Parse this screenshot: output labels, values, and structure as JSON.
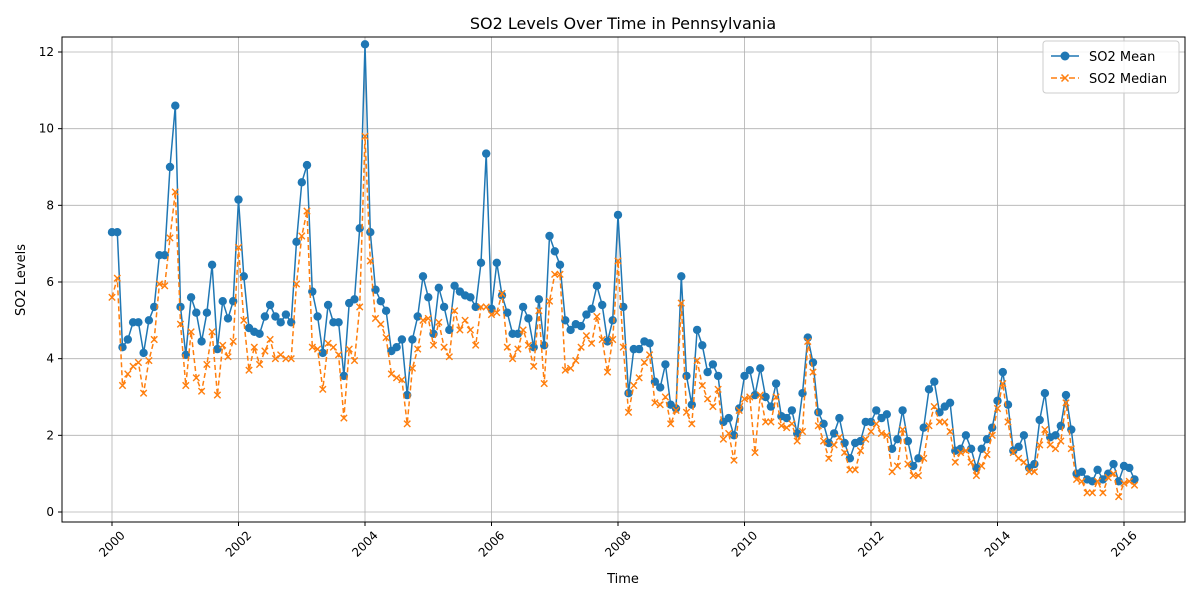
{
  "chart_data": {
    "type": "line",
    "title": "SO2 Levels Over Time in Pennsylvania",
    "xlabel": "Time",
    "ylabel": "SO2 Levels",
    "xlim": [
      2000,
      2016
    ],
    "ylim": [
      0,
      12.6
    ],
    "x_ticks": [
      "2000",
      "2002",
      "2004",
      "2006",
      "2008",
      "2010",
      "2012",
      "2014",
      "2016"
    ],
    "y_ticks": [
      "0",
      "2",
      "4",
      "6",
      "8",
      "10",
      "12"
    ],
    "grid": true,
    "legend_position": "top-right",
    "series": [
      {
        "name": "SO2 Mean",
        "color": "#1f77b4",
        "style": "solid",
        "marker": "circle",
        "values": [
          7.3,
          7.3,
          4.3,
          4.5,
          4.95,
          4.95,
          4.15,
          5.0,
          5.35,
          6.7,
          6.7,
          9.0,
          10.6,
          5.35,
          4.1,
          5.6,
          5.2,
          4.45,
          5.2,
          6.45,
          4.25,
          5.5,
          5.05,
          5.5,
          8.15,
          6.15,
          4.8,
          4.7,
          4.65,
          5.1,
          5.4,
          5.1,
          4.95,
          5.15,
          4.95,
          7.05,
          8.6,
          9.05,
          5.75,
          5.1,
          4.15,
          5.4,
          4.95,
          4.95,
          3.55,
          5.45,
          5.55,
          7.4,
          12.2,
          7.3,
          5.8,
          5.5,
          5.25,
          4.2,
          4.3,
          4.5,
          3.05,
          4.5,
          5.1,
          6.15,
          5.6,
          4.65,
          5.85,
          5.35,
          4.75,
          5.9,
          5.75,
          5.65,
          5.6,
          5.35,
          6.5,
          9.35,
          5.3,
          6.5,
          5.65,
          5.2,
          4.65,
          4.65,
          5.35,
          5.05,
          4.3,
          5.55,
          4.35,
          7.2,
          6.8,
          6.45,
          5.0,
          4.75,
          4.9,
          4.85,
          5.15,
          5.3,
          5.9,
          5.4,
          4.45,
          5.0,
          7.75,
          5.35,
          3.1,
          4.25,
          4.25,
          4.45,
          4.4,
          3.4,
          3.25,
          3.85,
          2.8,
          2.7,
          6.15,
          3.55,
          2.8,
          4.75,
          4.35,
          3.65,
          3.85,
          3.55,
          2.35,
          2.45,
          2.0,
          2.7,
          3.55,
          3.7,
          3.05,
          3.75,
          3.0,
          2.75,
          3.35,
          2.5,
          2.45,
          2.65,
          2.05,
          3.1,
          4.55,
          3.9,
          2.6,
          2.3,
          1.8,
          2.05,
          2.45,
          1.8,
          1.4,
          1.8,
          1.85,
          2.35,
          2.35,
          2.65,
          2.45,
          2.55,
          1.65,
          1.9,
          2.65,
          1.85,
          1.2,
          1.4,
          2.2,
          3.2,
          3.4,
          2.6,
          2.75,
          2.85,
          1.6,
          1.65,
          2.0,
          1.65,
          1.15,
          1.65,
          1.9,
          2.2,
          2.9,
          3.65,
          2.8,
          1.6,
          1.7,
          2.0,
          1.15,
          1.25,
          2.4,
          3.1,
          1.95,
          2.0,
          2.25,
          3.05,
          2.15,
          1.0,
          1.05,
          0.85,
          0.8,
          1.1,
          0.85,
          1.0,
          1.25,
          0.8,
          1.2,
          1.15,
          0.85
        ]
      },
      {
        "name": "SO2 Median",
        "color": "#ff7f0e",
        "style": "dashed",
        "marker": "x",
        "values": [
          5.6,
          6.1,
          3.3,
          3.6,
          3.8,
          3.9,
          3.1,
          3.95,
          4.5,
          5.95,
          5.9,
          7.15,
          8.35,
          4.9,
          3.3,
          4.7,
          3.5,
          3.15,
          3.85,
          4.7,
          3.05,
          4.35,
          4.05,
          4.45,
          6.9,
          5.0,
          3.7,
          4.3,
          3.85,
          4.2,
          4.5,
          4.0,
          4.1,
          4.0,
          4.0,
          5.95,
          7.2,
          7.85,
          4.3,
          4.25,
          3.2,
          4.4,
          4.3,
          4.1,
          2.45,
          4.25,
          3.95,
          5.35,
          9.8,
          6.55,
          5.05,
          4.9,
          4.55,
          3.6,
          3.5,
          3.45,
          2.3,
          3.75,
          4.25,
          5.0,
          5.05,
          4.35,
          4.95,
          4.3,
          4.05,
          5.25,
          4.75,
          5.0,
          4.75,
          4.35,
          5.35,
          5.35,
          5.15,
          5.2,
          5.7,
          4.3,
          4.0,
          4.25,
          4.75,
          4.35,
          3.8,
          5.25,
          3.35,
          5.5,
          6.2,
          6.2,
          3.7,
          3.75,
          3.95,
          4.3,
          4.6,
          4.4,
          5.1,
          4.5,
          3.65,
          4.5,
          6.55,
          4.3,
          2.6,
          3.3,
          3.5,
          3.9,
          4.1,
          2.85,
          2.8,
          3.0,
          2.3,
          2.65,
          5.45,
          2.6,
          2.3,
          3.95,
          3.3,
          2.95,
          2.75,
          3.2,
          1.9,
          2.05,
          1.35,
          2.65,
          2.95,
          3.0,
          1.55,
          3.05,
          2.35,
          2.35,
          3.0,
          2.25,
          2.2,
          2.3,
          1.85,
          2.1,
          4.45,
          3.65,
          2.25,
          1.85,
          1.4,
          1.75,
          1.95,
          1.55,
          1.1,
          1.1,
          1.6,
          1.9,
          2.1,
          2.3,
          2.05,
          2.0,
          1.05,
          1.2,
          2.15,
          1.25,
          0.95,
          0.95,
          1.4,
          2.25,
          2.75,
          2.35,
          2.35,
          2.1,
          1.3,
          1.55,
          1.6,
          1.3,
          0.95,
          1.2,
          1.5,
          2.0,
          2.7,
          3.35,
          2.35,
          1.55,
          1.4,
          1.3,
          1.05,
          1.05,
          1.75,
          2.15,
          1.75,
          1.65,
          1.85,
          2.85,
          1.65,
          0.85,
          0.8,
          0.5,
          0.5,
          0.8,
          0.5,
          0.9,
          1.0,
          0.4,
          0.75,
          0.8,
          0.7
        ]
      }
    ]
  }
}
